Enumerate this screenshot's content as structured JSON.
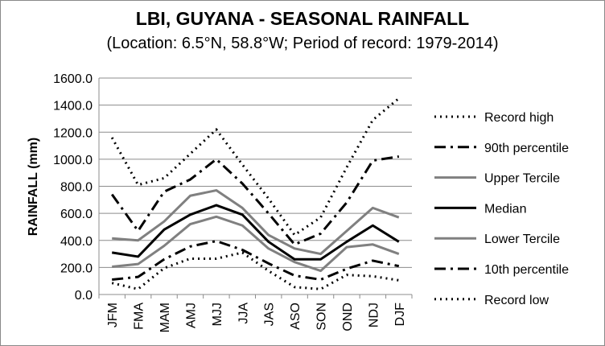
{
  "chart_data": {
    "type": "line",
    "title": "LBI, GUYANA - SEASONAL RAINFALL",
    "subtitle": "(Location: 6.5°N, 58.8°W; Period of record: 1979-2014)",
    "ylabel": "RAINFALL (mm)",
    "xlabel": "",
    "ylim": [
      0,
      1600
    ],
    "ytick_values": [
      0,
      200,
      400,
      600,
      800,
      1000,
      1200,
      1400,
      1600
    ],
    "ytick_labels": [
      "0.0",
      "200.0",
      "400.0",
      "600.0",
      "800.0",
      "1000.0",
      "1200.0",
      "1400.0",
      "1600.0"
    ],
    "grid": "horizontal",
    "legend_position": "right",
    "categories": [
      "JFM",
      "FMA",
      "MAM",
      "AMJ",
      "MJJ",
      "JJA",
      "JAS",
      "ASO",
      "SON",
      "OND",
      "NDJ",
      "DJF"
    ],
    "series": [
      {
        "name": "Record high",
        "style": "dotted",
        "color": "#000000",
        "values": [
          1160,
          810,
          860,
          1040,
          1220,
          960,
          710,
          440,
          570,
          940,
          1290,
          1450
        ]
      },
      {
        "name": "90th percentile",
        "style": "dashdot",
        "color": "#000000",
        "values": [
          740,
          470,
          760,
          850,
          1000,
          820,
          600,
          370,
          450,
          680,
          990,
          1020
        ]
      },
      {
        "name": "Upper Tercile",
        "style": "solid",
        "color": "#808080",
        "values": [
          415,
          400,
          540,
          730,
          770,
          640,
          440,
          340,
          300,
          470,
          640,
          570
        ]
      },
      {
        "name": "Median",
        "style": "solid",
        "color": "#000000",
        "values": [
          310,
          280,
          480,
          590,
          660,
          590,
          390,
          260,
          260,
          390,
          510,
          390
        ]
      },
      {
        "name": "Lower Tercile",
        "style": "solid",
        "color": "#808080",
        "values": [
          205,
          225,
          360,
          520,
          575,
          510,
          340,
          240,
          175,
          350,
          370,
          300
        ]
      },
      {
        "name": "10th percentile",
        "style": "dashdot",
        "color": "#000000",
        "values": [
          110,
          130,
          260,
          355,
          395,
          330,
          230,
          140,
          110,
          190,
          250,
          210
        ]
      },
      {
        "name": "Record low",
        "style": "dotted",
        "color": "#000000",
        "values": [
          85,
          40,
          195,
          265,
          265,
          310,
          175,
          55,
          40,
          145,
          135,
          105
        ]
      }
    ]
  }
}
